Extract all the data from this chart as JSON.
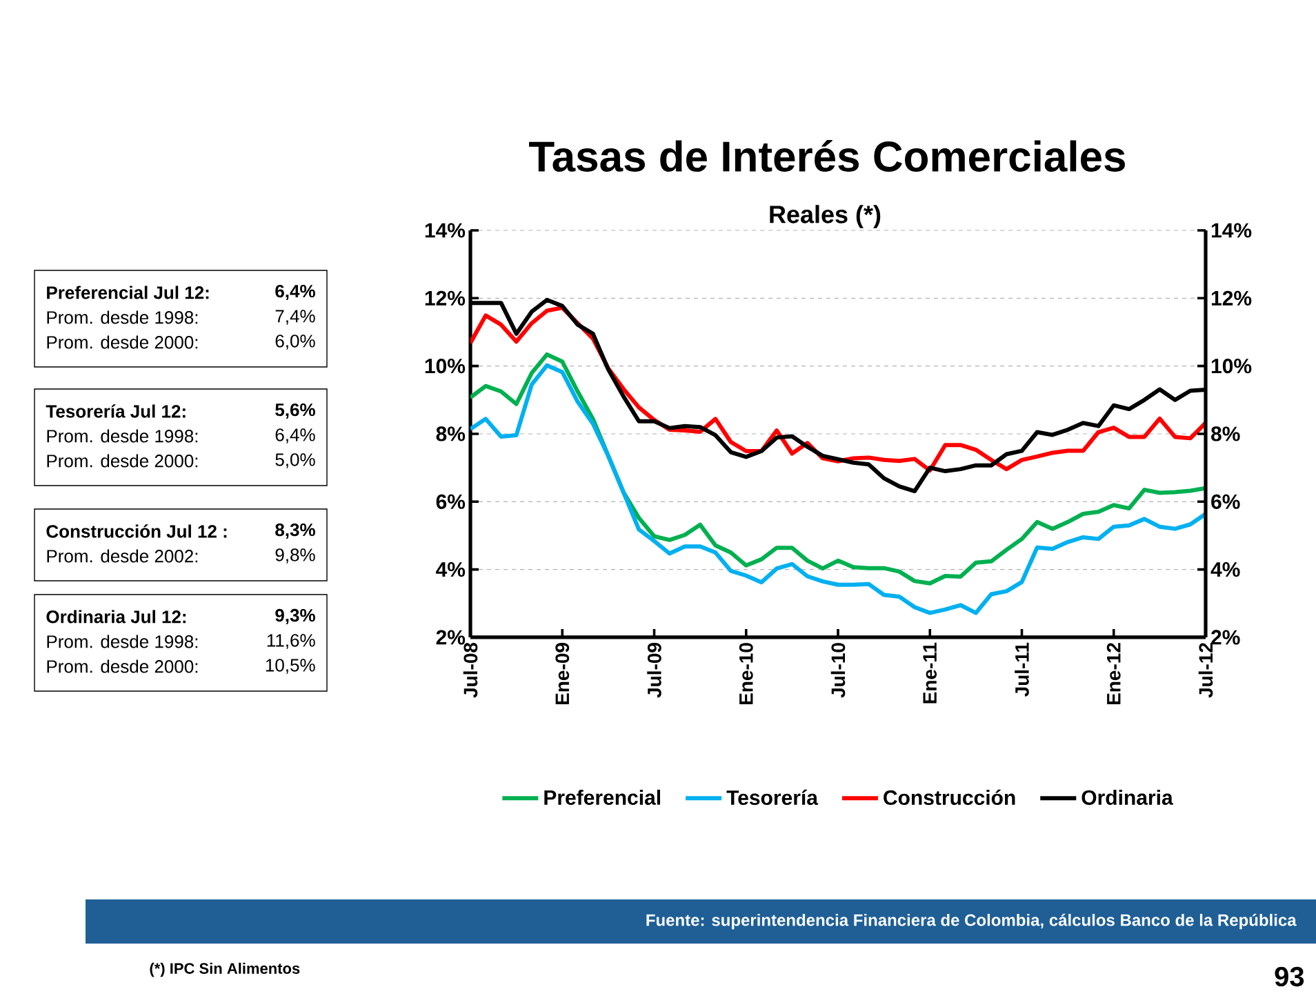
{
  "chart_data": {
    "type": "line",
    "title": "Tasas de Interés Comerciales",
    "subtitle": "Reales (*)",
    "x": [
      "2008-07",
      "2008-08",
      "2008-09",
      "2008-10",
      "2008-11",
      "2008-12",
      "2009-01",
      "2009-02",
      "2009-03",
      "2009-04",
      "2009-05",
      "2009-06",
      "2009-07",
      "2009-08",
      "2009-09",
      "2009-10",
      "2009-11",
      "2009-12",
      "2010-01",
      "2010-02",
      "2010-03",
      "2010-04",
      "2010-05",
      "2010-06",
      "2010-07",
      "2010-08",
      "2010-09",
      "2010-10",
      "2010-11",
      "2010-12",
      "2011-01",
      "2011-02",
      "2011-03",
      "2011-04",
      "2011-05",
      "2011-06",
      "2011-07",
      "2011-08",
      "2011-09",
      "2011-10",
      "2011-11",
      "2011-12",
      "2012-01",
      "2012-02",
      "2012-03",
      "2012-04",
      "2012-05",
      "2012-06",
      "2012-07"
    ],
    "series": [
      {
        "name": "Preferencial",
        "color": "#00b050",
        "values": [
          9.07,
          9.41,
          9.25,
          8.88,
          9.79,
          10.34,
          10.13,
          9.25,
          8.44,
          7.35,
          6.27,
          5.52,
          4.98,
          4.87,
          5.02,
          5.32,
          4.71,
          4.5,
          4.12,
          4.3,
          4.64,
          4.64,
          4.26,
          4.03,
          4.26,
          4.07,
          4.04,
          4.04,
          3.94,
          3.66,
          3.59,
          3.81,
          3.79,
          4.2,
          4.24,
          4.58,
          4.9,
          5.4,
          5.2,
          5.4,
          5.64,
          5.7,
          5.9,
          5.8,
          6.35,
          6.26,
          6.28,
          6.32,
          6.4
        ]
      },
      {
        "name": "Tesorería",
        "color": "#00b0f0",
        "values": [
          8.14,
          8.44,
          7.92,
          7.96,
          9.45,
          10.02,
          9.82,
          8.95,
          8.3,
          7.35,
          6.27,
          5.18,
          4.84,
          4.47,
          4.68,
          4.68,
          4.5,
          3.96,
          3.82,
          3.62,
          4.03,
          4.16,
          3.8,
          3.65,
          3.55,
          3.55,
          3.57,
          3.25,
          3.2,
          2.89,
          2.72,
          2.82,
          2.95,
          2.72,
          3.27,
          3.36,
          3.63,
          4.65,
          4.61,
          4.81,
          4.95,
          4.9,
          5.26,
          5.3,
          5.49,
          5.26,
          5.2,
          5.33,
          5.64
        ]
      },
      {
        "name": "Construcción",
        "color": "#ff0000",
        "values": [
          10.68,
          11.49,
          11.22,
          10.72,
          11.26,
          11.63,
          11.72,
          11.26,
          10.81,
          9.93,
          9.32,
          8.78,
          8.41,
          8.12,
          8.1,
          8.06,
          8.44,
          7.76,
          7.49,
          7.49,
          8.1,
          7.42,
          7.73,
          7.28,
          7.19,
          7.28,
          7.3,
          7.23,
          7.2,
          7.26,
          6.92,
          7.67,
          7.67,
          7.53,
          7.23,
          6.96,
          7.23,
          7.33,
          7.44,
          7.5,
          7.5,
          8.05,
          8.18,
          7.91,
          7.91,
          8.45,
          7.91,
          7.87,
          8.32
        ]
      },
      {
        "name": "Ordinaria",
        "color": "#000000",
        "values": [
          11.86,
          11.86,
          11.86,
          10.95,
          11.6,
          11.95,
          11.77,
          11.22,
          10.95,
          9.9,
          9.1,
          8.37,
          8.37,
          8.17,
          8.23,
          8.2,
          7.96,
          7.46,
          7.32,
          7.49,
          7.89,
          7.93,
          7.62,
          7.35,
          7.25,
          7.15,
          7.1,
          6.69,
          6.45,
          6.31,
          7.0,
          6.9,
          6.96,
          7.07,
          7.07,
          7.4,
          7.5,
          8.05,
          7.97,
          8.12,
          8.32,
          8.23,
          8.84,
          8.73,
          9.0,
          9.31,
          9.0,
          9.27,
          9.3
        ]
      }
    ],
    "xlim": [
      "2008-07",
      "2012-07"
    ],
    "xticks": [
      {
        "value": "2008-07",
        "label": "Jul-08"
      },
      {
        "value": "2009-01",
        "label": "Ene-09"
      },
      {
        "value": "2009-07",
        "label": "Jul-09"
      },
      {
        "value": "2010-01",
        "label": "Ene-10"
      },
      {
        "value": "2010-07",
        "label": "Jul-10"
      },
      {
        "value": "2011-01",
        "label": "Ene-11"
      },
      {
        "value": "2011-07",
        "label": "Jul-11"
      },
      {
        "value": "2012-01",
        "label": "Ene-12"
      },
      {
        "value": "2012-07",
        "label": "Jul-12"
      }
    ],
    "ylim": [
      2,
      14
    ],
    "yticks": [
      {
        "value": 2,
        "label": "2%"
      },
      {
        "value": 4,
        "label": "4%"
      },
      {
        "value": 6,
        "label": "6%"
      },
      {
        "value": 8,
        "label": "8%"
      },
      {
        "value": 10,
        "label": "10%"
      },
      {
        "value": 12,
        "label": "12%"
      },
      {
        "value": 14,
        "label": "14%"
      }
    ],
    "y2lim": [
      2,
      14
    ],
    "y2ticks": [
      {
        "value": 2,
        "label": "2%"
      },
      {
        "value": 4,
        "label": "4%"
      },
      {
        "value": 6,
        "label": "6%"
      },
      {
        "value": 8,
        "label": "8%"
      },
      {
        "value": 10,
        "label": "10%"
      },
      {
        "value": 12,
        "label": "12%"
      },
      {
        "value": 14,
        "label": "14%"
      }
    ],
    "grid": "y",
    "legend": "bottom",
    "annotations": [
      "Preferencial Jul 12:",
      "6,4%",
      "Prom. desde 1998:",
      "7,4%",
      "Prom. desde 2000:",
      "6,0%",
      "Tesorería Jul 12:",
      "5,6%",
      "Prom. desde 1998:",
      "6,4%",
      "Prom. desde 2000:",
      "5,0%",
      "Construcción Jul 12 :",
      "8,3%",
      "Prom. desde 2002:",
      "9,8%",
      "Ordinaria Jul 12:",
      "9,3%",
      "Prom. desde 1998:",
      "11,6%",
      "Prom. desde 2000:",
      "10,5%",
      "Fuente: superintendencia Financiera de Colombia, cálculos Banco de la República",
      "(*) IPC Sin Alimentos",
      "93"
    ]
  }
}
